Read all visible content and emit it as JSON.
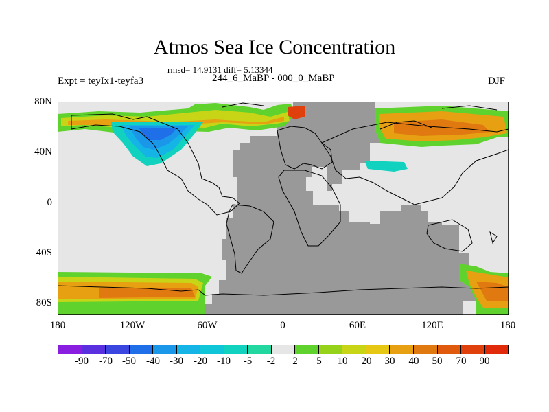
{
  "title": "Atmos Sea Ice Concentration",
  "stats": "rmsd= 14.9131 diff= 5.13344",
  "expt": "Expt = teyIx1-teyfa3",
  "period": "244_6_MaBP - 000_0_MaBP",
  "season": "DJF",
  "y_axis": [
    "80N",
    "40N",
    "0",
    "40S",
    "80S"
  ],
  "x_axis": [
    "180",
    "120W",
    "60W",
    "0",
    "60E",
    "120E",
    "180"
  ],
  "colorbar": {
    "labels": [
      "-90",
      "-70",
      "-50",
      "-40",
      "-30",
      "-20",
      "-10",
      "-5",
      "-2",
      "2",
      "5",
      "10",
      "20",
      "30",
      "40",
      "50",
      "70",
      "90"
    ],
    "colors": [
      "#8a1ee0",
      "#5a2fe0",
      "#3b46e0",
      "#1f6fe8",
      "#1b97ea",
      "#14b4e6",
      "#0fc6d8",
      "#10d2bf",
      "#22d8a0",
      "#e6e6e6",
      "#5fd22d",
      "#96d21a",
      "#c8d516",
      "#e6c814",
      "#e6a012",
      "#e07a10",
      "#e05a0e",
      "#e0400c",
      "#e02a0a"
    ]
  },
  "map_colors": {
    "ocean_background": "#e6e6e6",
    "land_no_data": "#999999"
  }
}
